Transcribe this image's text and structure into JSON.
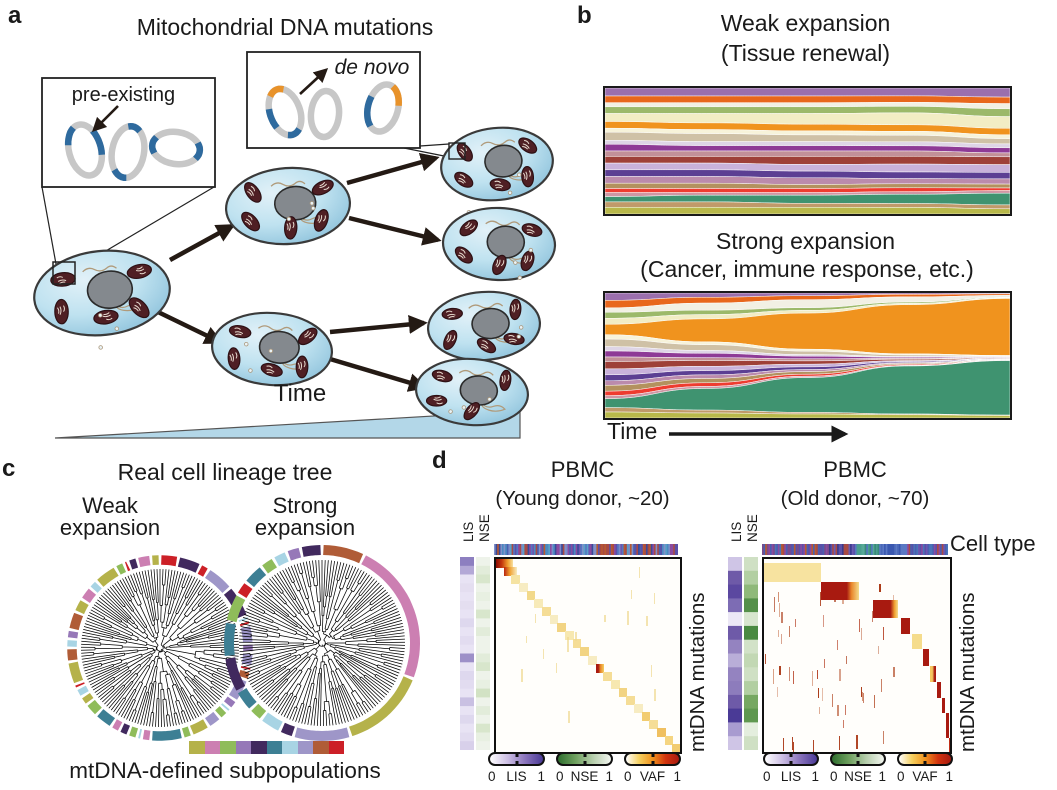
{
  "panels": {
    "a": {
      "label": "a",
      "title": "Mitochondrial DNA mutations",
      "preexisting_label": "pre-existing",
      "denovo_label": "de novo",
      "time_label": "Time",
      "colors": {
        "mtdna_gray": "#c7c7c7",
        "preexisting_blue": "#2e6a9e",
        "denovo_orange": "#e8922a",
        "wedge_blue": "#b3d7e8"
      }
    },
    "b": {
      "label": "b",
      "weak_title": "Weak expansion",
      "weak_subtitle": "(Tissue renewal)",
      "strong_title": "Strong expansion",
      "strong_subtitle": "(Cancer, immune response, etc.)",
      "time_label": "Time"
    },
    "c": {
      "label": "c",
      "title": "Real cell lineage tree",
      "weak_lines": [
        "Weak",
        "expansion"
      ],
      "strong_lines": [
        "Strong",
        "expansion"
      ],
      "caption": "mtDNA-defined subpopulations",
      "subpop_palette": [
        "#b5b24a",
        "#cc7fb2",
        "#8fbc5a",
        "#9678b8",
        "#41295e",
        "#3d7f94",
        "#a8d4e4",
        "#9e96c8",
        "#b05c37",
        "#cc2027"
      ],
      "weak_ring": [
        [
          9,
          4
        ],
        [
          4,
          5
        ],
        [
          9,
          2
        ],
        [
          7,
          6
        ],
        [
          4,
          7
        ],
        [
          6,
          1
        ],
        [
          9,
          1
        ],
        [
          7,
          4
        ],
        [
          3,
          2
        ],
        [
          7,
          3
        ],
        [
          9,
          1
        ],
        [
          8,
          2
        ],
        [
          7,
          5
        ],
        [
          3,
          2
        ],
        [
          6,
          1
        ],
        [
          2,
          2
        ],
        [
          7,
          3
        ],
        [
          0,
          4
        ],
        [
          2,
          2
        ],
        [
          5,
          7
        ],
        [
          1,
          2
        ],
        [
          6,
          1
        ],
        [
          2,
          2
        ],
        [
          4,
          2
        ],
        [
          1,
          2
        ],
        [
          5,
          4
        ],
        [
          2,
          3
        ],
        [
          0,
          2
        ],
        [
          6,
          2
        ],
        [
          9,
          1
        ],
        [
          0,
          5
        ],
        [
          8,
          3
        ],
        [
          6,
          2
        ],
        [
          3,
          2
        ],
        [
          8,
          4
        ],
        [
          0,
          3
        ],
        [
          1,
          3
        ],
        [
          6,
          2
        ],
        [
          0,
          5
        ],
        [
          2,
          2
        ],
        [
          9,
          1
        ],
        [
          4,
          2
        ],
        [
          1,
          3
        ],
        [
          0,
          2
        ]
      ],
      "strong_ring": [
        [
          8,
          6
        ],
        [
          1,
          20
        ],
        [
          0,
          12
        ],
        [
          7,
          8
        ],
        [
          4,
          2
        ],
        [
          6,
          3
        ],
        [
          2,
          2
        ],
        [
          5,
          3
        ],
        [
          4,
          5
        ],
        [
          5,
          5
        ],
        [
          2,
          4
        ],
        [
          9,
          2
        ],
        [
          5,
          3
        ],
        [
          2,
          2
        ],
        [
          6,
          2
        ],
        [
          3,
          2
        ],
        [
          4,
          3
        ]
      ],
      "tree": {
        "leaves": 165,
        "weak_seed": 7,
        "strong_seed": 13
      }
    },
    "d": {
      "label": "d",
      "young": {
        "title": "PBMC",
        "subtitle": "(Young donor,  ~20)"
      },
      "old": {
        "title": "PBMC",
        "subtitle": "(Old donor,  ~70)"
      },
      "row_label_lis": "LIS",
      "row_label_nse": "NSE",
      "cell_type_label": "Cell type",
      "mut_label": "mtDNA mutations",
      "colorbars": [
        {
          "name": "LIS",
          "min": "0",
          "max": "1",
          "stops": [
            "#ffffff",
            "#cdbfe4",
            "#8a74bc",
            "#4a3a96"
          ]
        },
        {
          "name": "NSE",
          "min": "0",
          "max": "1",
          "stops": [
            "#2e6e2e",
            "#6fa05f",
            "#b8cfae",
            "#f2f5ef"
          ]
        },
        {
          "name": "VAF",
          "min": "0",
          "max": "1",
          "stops": [
            "#ffffff",
            "#f5d060",
            "#f0931e",
            "#d2330e",
            "#a81a10"
          ]
        }
      ],
      "young_lis": [
        "#8d7fc0",
        "#b3a8d6",
        "#e8e3f4",
        "#e4def0",
        "#e8e3f4",
        "#e4def0",
        "#e8e3f4",
        "#ded8ee",
        "#e8e3f4",
        "#e2dcf0",
        "#e8e3f4",
        "#9d90c8",
        "#e8e3f4",
        "#ded8ee",
        "#e2dcf0",
        "#e8e3f4",
        "#c9c0e2",
        "#e8e3f4",
        "#ded8ee",
        "#e8e3f4",
        "#e2dcf0",
        "#d8d0ea"
      ],
      "young_nse": [
        "#eef3ea",
        "#e2ecda",
        "#d8e6cc",
        "#eef3ea",
        "#e8f0e2",
        "#eef3ea",
        "#d8e6cc",
        "#eef3ea",
        "#e2ecda",
        "#eef3ea",
        "#eef3ea",
        "#e2ecda",
        "#d8e6cc",
        "#eef3ea",
        "#e8f0e2",
        "#d2e2c4",
        "#eef3ea",
        "#e2ecda",
        "#eef3ea",
        "#d8e6cc",
        "#e8f0e2",
        "#eef3ea"
      ],
      "old_lis": [
        "#cfc5e6",
        "#6e5aa8",
        "#5b48a0",
        "#7d6cb4",
        "#ece8f6",
        "#6e5aa8",
        "#9483c0",
        "#b9aed8",
        "#9483c0",
        "#8d7cbc",
        "#6e5aa8",
        "#4a3a96",
        "#a89bd0",
        "#cfc5e6"
      ],
      "old_nse": [
        "#cfe0c4",
        "#b2cfa2",
        "#8fb97a",
        "#55904a",
        "#d8e6cf",
        "#4a8a42",
        "#d2e2c8",
        "#c2d8b4",
        "#cfe0c4",
        "#b2cfa2",
        "#76a862",
        "#5f9850",
        "#e4eede",
        "#cfe0c4"
      ],
      "strip_young": {
        "regions": [
          {
            "w": 1.0,
            "colors": [
              "#4a5fb0",
              "#6e55b0",
              "#8a4aa0",
              "#a84a44",
              "#5577c0",
              "#4a8ac0",
              "#3a4a9a",
              "#b85a30",
              "#7a8ac8",
              "#5aa0c8",
              "#8090c8",
              "#5a50a8"
            ]
          }
        ],
        "seed": 41
      },
      "strip_old": {
        "regions": [
          {
            "w": 0.36,
            "colors": [
              "#5a50a8",
              "#8a4aa0",
              "#a84a44",
              "#4a5fb0",
              "#7a4a8a",
              "#b85a30",
              "#4a74b8"
            ]
          },
          {
            "w": 0.14,
            "colors": [
              "#3a3a8e",
              "#5a50a8",
              "#a84a44",
              "#6a5ab0"
            ]
          },
          {
            "w": 0.13,
            "colors": [
              "#4a9e8e",
              "#55a896",
              "#3a8a7a",
              "#5577c0"
            ]
          },
          {
            "w": 0.15,
            "colors": [
              "#4a68b8",
              "#3a58b0",
              "#5a78c4"
            ]
          },
          {
            "w": 0.22,
            "colors": [
              "#5a50a8",
              "#4a5fb0",
              "#8a4aa0",
              "#a84a44",
              "#4a74b8",
              "#6e55b0"
            ]
          }
        ],
        "seed": 42
      }
    }
  },
  "chart_data": [
    {
      "type": "area",
      "name": "weak-expansion-streamgraph",
      "x": [
        0,
        0.25,
        0.5,
        0.75,
        1
      ],
      "band_colors": [
        "#9b6fad",
        "#e8671c",
        "#f2f0e4",
        "#9cb96a",
        "#f2edc4",
        "#f0931e",
        "#f7f3da",
        "#cfc1a6",
        "#ded5e6",
        "#8e3a96",
        "#c29098",
        "#9e4038",
        "#c9b2da",
        "#5c3f93",
        "#bb8bac",
        "#b3915e",
        "#ee3c30",
        "#cf97a4",
        "#3f9370",
        "#c09a6a",
        "#b8b84a"
      ],
      "bands": [
        [
          6,
          6,
          6,
          6,
          7
        ],
        [
          5,
          5,
          5,
          5,
          5
        ],
        [
          3,
          3,
          3,
          3,
          4
        ],
        [
          5,
          5,
          5,
          5,
          6
        ],
        [
          6,
          7,
          8,
          9,
          9
        ],
        [
          5,
          5,
          5,
          5,
          5
        ],
        [
          3,
          3,
          3,
          3,
          3
        ],
        [
          6,
          6,
          5,
          5,
          4
        ],
        [
          3,
          3,
          3,
          3,
          3
        ],
        [
          5,
          4,
          4,
          4,
          4
        ],
        [
          4,
          4,
          4,
          4,
          3
        ],
        [
          5,
          5,
          6,
          6,
          6
        ],
        [
          5,
          5,
          5,
          6,
          6
        ],
        [
          5,
          5,
          5,
          5,
          5
        ],
        [
          5,
          5,
          5,
          4,
          4
        ],
        [
          4,
          4,
          3,
          3,
          3
        ],
        [
          3,
          3,
          3,
          3,
          2
        ],
        [
          3,
          2,
          2,
          2,
          2
        ],
        [
          4,
          5,
          6,
          7,
          9
        ],
        [
          4,
          4,
          3,
          3,
          3
        ],
        [
          5,
          5,
          5,
          5,
          4
        ]
      ]
    },
    {
      "type": "area",
      "name": "strong-expansion-streamgraph",
      "x": [
        0,
        0.25,
        0.5,
        0.75,
        1
      ],
      "band_colors": [
        "#9b6fad",
        "#e8671c",
        "#f2f0e4",
        "#9cb96a",
        "#f2edc4",
        "#f0931e",
        "#f7f3da",
        "#cfc1a6",
        "#ded5e6",
        "#8e3a96",
        "#c29098",
        "#9e4038",
        "#c9b2da",
        "#5c3f93",
        "#bb8bac",
        "#b3915e",
        "#ee3c30",
        "#cf97a4",
        "#3f9370",
        "#c09a6a",
        "#b8b84a"
      ],
      "bands": [
        [
          5,
          3,
          2,
          1,
          0.7
        ],
        [
          5,
          4,
          3,
          2,
          1.2
        ],
        [
          3,
          5,
          6,
          4,
          1.5
        ],
        [
          4,
          3,
          2,
          1,
          0.5
        ],
        [
          4,
          3,
          2,
          1,
          0.5
        ],
        [
          7,
          16,
          27,
          38,
          46
        ],
        [
          3,
          2,
          1.5,
          0.8,
          0.4
        ],
        [
          5,
          4,
          2.5,
          1.2,
          0.5
        ],
        [
          3,
          2,
          1.2,
          0.6,
          0.3
        ],
        [
          4,
          3,
          2,
          0.8,
          0.4
        ],
        [
          3,
          2,
          1.5,
          0.7,
          0.3
        ],
        [
          5,
          4,
          2.5,
          1,
          0.5
        ],
        [
          4,
          3,
          2,
          0.8,
          0.3
        ],
        [
          4,
          3,
          2,
          0.8,
          0.3
        ],
        [
          3,
          2.5,
          1.5,
          0.6,
          0.3
        ],
        [
          4,
          3,
          2,
          0.8,
          0.3
        ],
        [
          3,
          2.5,
          1.5,
          0.7,
          0.3
        ],
        [
          2,
          1.5,
          1,
          0.5,
          0.2
        ],
        [
          6,
          15,
          26,
          37,
          44
        ],
        [
          3,
          2,
          1.2,
          0.6,
          0.3
        ],
        [
          4,
          3.5,
          3,
          2.5,
          2
        ]
      ]
    },
    {
      "type": "heatmap",
      "name": "pbmc-young-vaf-heatmap",
      "n": 24,
      "diag_colors": [
        "grad:#8e0b05 0%,#c53a0e 35%,#f0a030 70%,#f7e0a0 100%",
        "grad:#b82410 0%,#f0a030 45%,#f7ecc2 100%",
        "#f5e3a2",
        "#f7ecc2",
        "#f2d98a",
        "#f7eab8",
        "#f5dd96",
        "#f7ecc2",
        "#f2d483",
        "#f7e8b0",
        "#f5dd96",
        "#f2d483",
        "#f7ecc2",
        "grad:#a81a10 0%,#a81a10 30%,#e8852a 55%,#f5d060 100%",
        "#f5dd96",
        "#f7e8b0",
        "#f2d483",
        "#f5dd96",
        "#f7ecc2",
        "#f2cc70",
        "#f5dd96",
        "#f0c060",
        "#f5d581",
        "#f2cc70"
      ],
      "tick_color": "#f0d890",
      "tick_count": 16,
      "seed": 21
    },
    {
      "type": "heatmap",
      "name": "pbmc-old-vaf-heatmap",
      "blocks": [
        [
          0.0,
          0.02,
          0.305,
          0.1,
          "#f7e3a0"
        ],
        [
          0.305,
          0.12,
          0.205,
          0.095,
          "grad:#a81a10 0%,#a81a10 68%,#e8852a 80%,#f5dc8c 100%"
        ],
        [
          0.585,
          0.215,
          0.138,
          0.092,
          "grad:#a81a10 0%,#a81a10 70%,#f0a030 86%,#f5dc8c 100%"
        ],
        [
          0.737,
          0.307,
          0.05,
          0.082,
          "#a81a10"
        ],
        [
          0.795,
          0.39,
          0.052,
          0.078,
          "#f5dc8c"
        ],
        [
          0.853,
          0.468,
          0.033,
          0.088,
          "#a81a10"
        ],
        [
          0.89,
          0.556,
          0.034,
          0.082,
          "grad:#f5c860 0%,#f5c860 40%,#a81a10 75%,#a81a10 100%"
        ],
        [
          0.928,
          0.638,
          0.025,
          0.08,
          "#a81a10"
        ],
        [
          0.956,
          0.718,
          0.019,
          0.082,
          "#a81a10"
        ],
        [
          0.977,
          0.8,
          0.016,
          0.125,
          "#a81a10"
        ],
        [
          0.992,
          0.925,
          0.008,
          0.075,
          "#c03018"
        ]
      ],
      "streak_colors": [
        "#a8330f",
        "#c06a4a",
        "#b8452a",
        "#d08868"
      ],
      "streak_count": 46,
      "seed": 22
    }
  ]
}
